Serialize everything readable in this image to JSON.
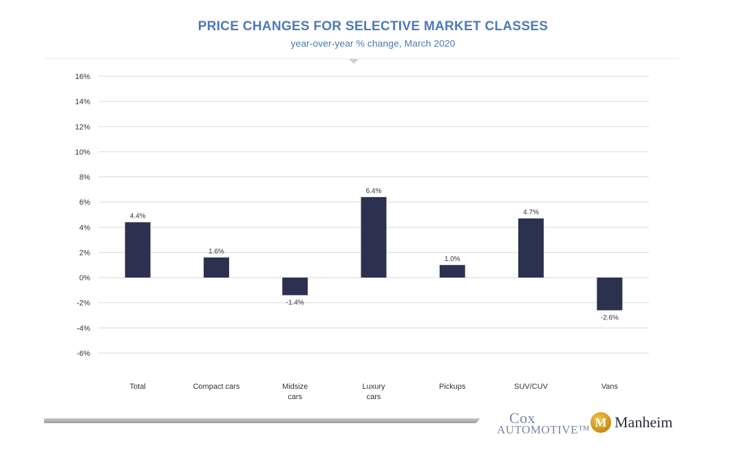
{
  "header": {
    "title": "PRICE CHANGES FOR SELECTIVE MARKET CLASSES",
    "subtitle": "year-over-year % change, March 2020"
  },
  "colors": {
    "bar": "#2d3150",
    "title": "#4a7ab8",
    "grid": "#d9d9d9",
    "text": "#333333"
  },
  "chart_data": {
    "type": "bar",
    "title": "PRICE CHANGES FOR SELECTIVE MARKET CLASSES",
    "subtitle": "year-over-year % change, March 2020",
    "xlabel": "",
    "ylabel": "",
    "categories": [
      [
        "Total"
      ],
      [
        "Compact cars"
      ],
      [
        "Midsize",
        "cars"
      ],
      [
        "Luxury",
        "cars"
      ],
      [
        "Pickups"
      ],
      [
        "SUV/CUV"
      ],
      [
        "Vans"
      ]
    ],
    "values": [
      4.4,
      1.6,
      -1.4,
      6.4,
      1.0,
      4.7,
      -2.6
    ],
    "data_labels": [
      "4.4%",
      "1.6%",
      "-1.4%",
      "6.4%",
      "1.0%",
      "4.7%",
      "-2.6%"
    ],
    "ylim": [
      -6,
      16
    ],
    "yticks": [
      16,
      14,
      12,
      10,
      8,
      6,
      4,
      2,
      0,
      -2,
      -4,
      -6
    ],
    "ytick_labels": [
      "16%",
      "14%",
      "12%",
      "10%",
      "8%",
      "6%",
      "4%",
      "2%",
      "0%",
      "-2%",
      "-4%",
      "-6%"
    ],
    "grid": true,
    "legend": false
  },
  "footer": {
    "logo_cox_line1": "Cox",
    "logo_cox_line2": "AUTOMOTIVE™",
    "logo_manheim_mark": "M",
    "logo_manheim": "Manheim"
  }
}
